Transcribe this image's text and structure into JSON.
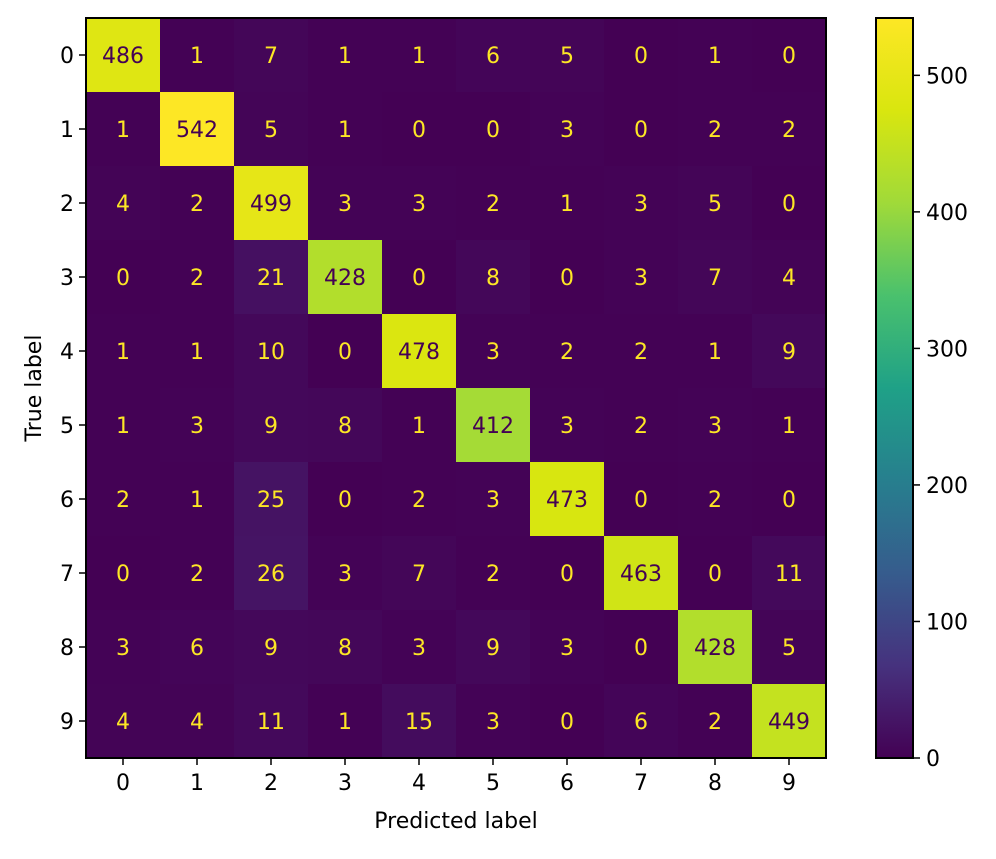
{
  "chart_data": {
    "type": "heatmap",
    "title": "",
    "xlabel": "Predicted label",
    "ylabel": "True label",
    "x_categories": [
      "0",
      "1",
      "2",
      "3",
      "4",
      "5",
      "6",
      "7",
      "8",
      "9"
    ],
    "y_categories": [
      "0",
      "1",
      "2",
      "3",
      "4",
      "5",
      "6",
      "7",
      "8",
      "9"
    ],
    "matrix": [
      [
        486,
        1,
        7,
        1,
        1,
        6,
        5,
        0,
        1,
        0
      ],
      [
        1,
        542,
        5,
        1,
        0,
        0,
        3,
        0,
        2,
        2
      ],
      [
        4,
        2,
        499,
        3,
        3,
        2,
        1,
        3,
        5,
        0
      ],
      [
        0,
        2,
        21,
        428,
        0,
        8,
        0,
        3,
        7,
        4
      ],
      [
        1,
        1,
        10,
        0,
        478,
        3,
        2,
        2,
        1,
        9
      ],
      [
        1,
        3,
        9,
        8,
        1,
        412,
        3,
        2,
        3,
        1
      ],
      [
        2,
        1,
        25,
        0,
        2,
        3,
        473,
        0,
        2,
        0
      ],
      [
        0,
        2,
        26,
        3,
        7,
        2,
        0,
        463,
        0,
        11
      ],
      [
        3,
        6,
        9,
        8,
        3,
        9,
        3,
        0,
        428,
        5
      ],
      [
        4,
        4,
        11,
        1,
        15,
        3,
        0,
        6,
        2,
        449
      ]
    ],
    "colormap": "viridis",
    "color_range": [
      0,
      542
    ],
    "colorbar_ticks": [
      0,
      100,
      200,
      300,
      400,
      500
    ],
    "grid": false
  }
}
